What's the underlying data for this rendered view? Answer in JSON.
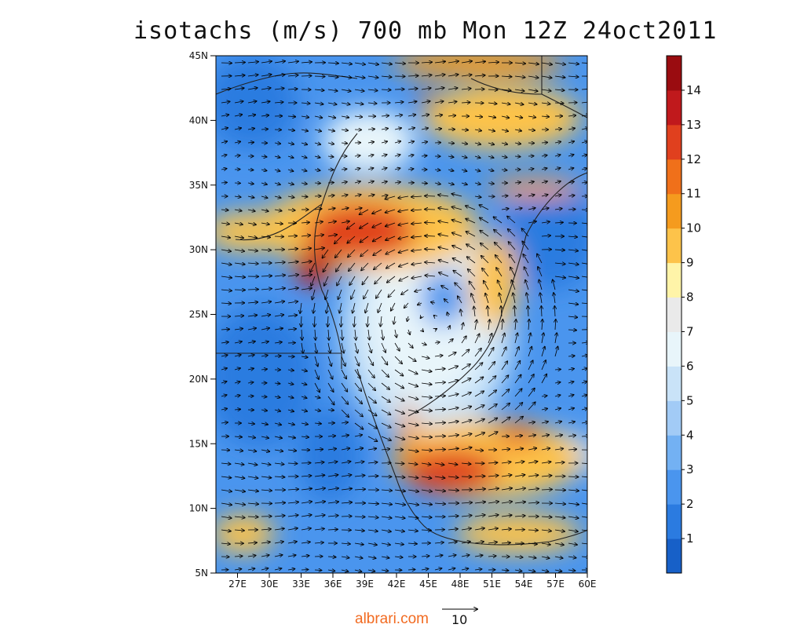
{
  "title": "isotachs (m/s) 700 mb Mon 12Z 24oct2011",
  "lat_labels": [
    "45N",
    "40N",
    "35N",
    "30N",
    "25N",
    "20N",
    "15N",
    "10N",
    "5N"
  ],
  "lon_labels": [
    "27E",
    "30E",
    "33E",
    "36E",
    "39E",
    "42E",
    "45E",
    "48E",
    "51E",
    "54E",
    "57E",
    "60E"
  ],
  "colorbar": {
    "labels": [
      "1",
      "2",
      "3",
      "4",
      "5",
      "6",
      "7",
      "8",
      "9",
      "10",
      "11",
      "12",
      "13",
      "14"
    ],
    "colors": [
      "#1760c8",
      "#2b7be0",
      "#4a95ee",
      "#73b1f3",
      "#a2cbf6",
      "#c9e3f8",
      "#e8f5fa",
      "#eaeaea",
      "#fff4a8",
      "#fdc34a",
      "#f59b1e",
      "#f0701a",
      "#e0401e",
      "#c0191c",
      "#9a0c10"
    ]
  },
  "reference_vector": {
    "site": "albrari.com",
    "value": "10"
  }
}
